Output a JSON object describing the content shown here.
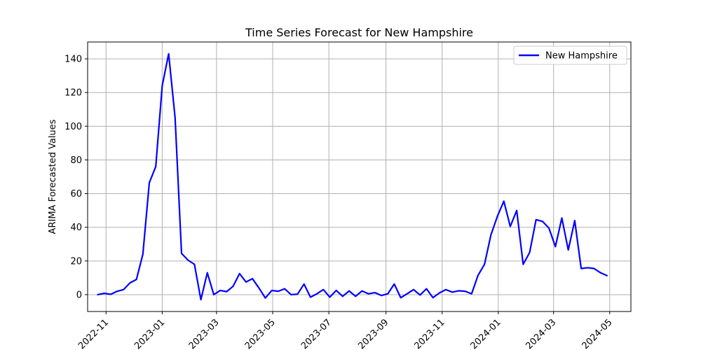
{
  "chart_data": {
    "type": "line",
    "title": "Time Series Forecast for New Hampshire",
    "xlabel": "",
    "ylabel": "ARIMA Forecasted Values",
    "ylim": [
      -10,
      150
    ],
    "xlim": [
      "2022-10-12",
      "2024-05-24"
    ],
    "y_ticks": [
      0,
      20,
      40,
      60,
      80,
      100,
      120,
      140
    ],
    "x_ticks": [
      "2022-11",
      "2023-01",
      "2023-03",
      "2023-05",
      "2023-07",
      "2023-09",
      "2023-11",
      "2024-01",
      "2024-03",
      "2024-05"
    ],
    "grid": true,
    "legend": {
      "position": "top-right",
      "entries": [
        "New Hampshire"
      ]
    },
    "series": [
      {
        "name": "New Hampshire",
        "color": "#0000ff",
        "points": [
          [
            "2022-10-23",
            0
          ],
          [
            "2022-10-30",
            0.8
          ],
          [
            "2022-11-06",
            0.2
          ],
          [
            "2022-11-13",
            2
          ],
          [
            "2022-11-20",
            3
          ],
          [
            "2022-11-27",
            7
          ],
          [
            "2022-12-04",
            9
          ],
          [
            "2022-12-11",
            24
          ],
          [
            "2022-12-18",
            66.5
          ],
          [
            "2022-12-25",
            76
          ],
          [
            "2023-01-01",
            124
          ],
          [
            "2023-01-08",
            143
          ],
          [
            "2023-01-15",
            105
          ],
          [
            "2023-01-22",
            24.5
          ],
          [
            "2023-01-29",
            20.5
          ],
          [
            "2023-02-05",
            18
          ],
          [
            "2023-02-12",
            -3
          ],
          [
            "2023-02-19",
            13
          ],
          [
            "2023-02-26",
            0
          ],
          [
            "2023-03-05",
            2.5
          ],
          [
            "2023-03-12",
            1.8
          ],
          [
            "2023-03-19",
            5
          ],
          [
            "2023-03-26",
            12.5
          ],
          [
            "2023-04-02",
            7.5
          ],
          [
            "2023-04-09",
            9.5
          ],
          [
            "2023-04-16",
            4
          ],
          [
            "2023-04-23",
            -2
          ],
          [
            "2023-04-30",
            2.5
          ],
          [
            "2023-05-07",
            2
          ],
          [
            "2023-05-14",
            3.5
          ],
          [
            "2023-05-21",
            0
          ],
          [
            "2023-05-28",
            0.3
          ],
          [
            "2023-06-04",
            6.3
          ],
          [
            "2023-06-11",
            -1.5
          ],
          [
            "2023-06-18",
            0.5
          ],
          [
            "2023-06-25",
            3
          ],
          [
            "2023-07-02",
            -1.5
          ],
          [
            "2023-07-09",
            2.5
          ],
          [
            "2023-07-16",
            -1
          ],
          [
            "2023-07-23",
            2.2
          ],
          [
            "2023-07-30",
            -1
          ],
          [
            "2023-08-06",
            2.2
          ],
          [
            "2023-08-13",
            0.5
          ],
          [
            "2023-08-20",
            1.2
          ],
          [
            "2023-08-27",
            -0.5
          ],
          [
            "2023-09-03",
            0.5
          ],
          [
            "2023-09-10",
            6.3
          ],
          [
            "2023-09-17",
            -1.8
          ],
          [
            "2023-09-24",
            0.5
          ],
          [
            "2023-10-01",
            3
          ],
          [
            "2023-10-08",
            -0.2
          ],
          [
            "2023-10-15",
            3.5
          ],
          [
            "2023-10-22",
            -1.8
          ],
          [
            "2023-10-29",
            1
          ],
          [
            "2023-11-05",
            3
          ],
          [
            "2023-11-12",
            1.5
          ],
          [
            "2023-11-19",
            2.3
          ],
          [
            "2023-11-26",
            2
          ],
          [
            "2023-12-03",
            0.5
          ],
          [
            "2023-12-10",
            11.5
          ],
          [
            "2023-12-17",
            18
          ],
          [
            "2023-12-24",
            35.5
          ],
          [
            "2023-12-31",
            46.5
          ],
          [
            "2024-01-07",
            55.5
          ],
          [
            "2024-01-14",
            40.5
          ],
          [
            "2024-01-21",
            50
          ],
          [
            "2024-01-28",
            18
          ],
          [
            "2024-02-04",
            25
          ],
          [
            "2024-02-11",
            44.5
          ],
          [
            "2024-02-18",
            43.5
          ],
          [
            "2024-02-25",
            39.5
          ],
          [
            "2024-03-03",
            28.5
          ],
          [
            "2024-03-10",
            45.5
          ],
          [
            "2024-03-17",
            26.5
          ],
          [
            "2024-03-24",
            44
          ],
          [
            "2024-03-31",
            15.5
          ],
          [
            "2024-04-07",
            16
          ],
          [
            "2024-04-14",
            15.5
          ],
          [
            "2024-04-21",
            13
          ],
          [
            "2024-04-28",
            11.3
          ]
        ]
      }
    ]
  }
}
